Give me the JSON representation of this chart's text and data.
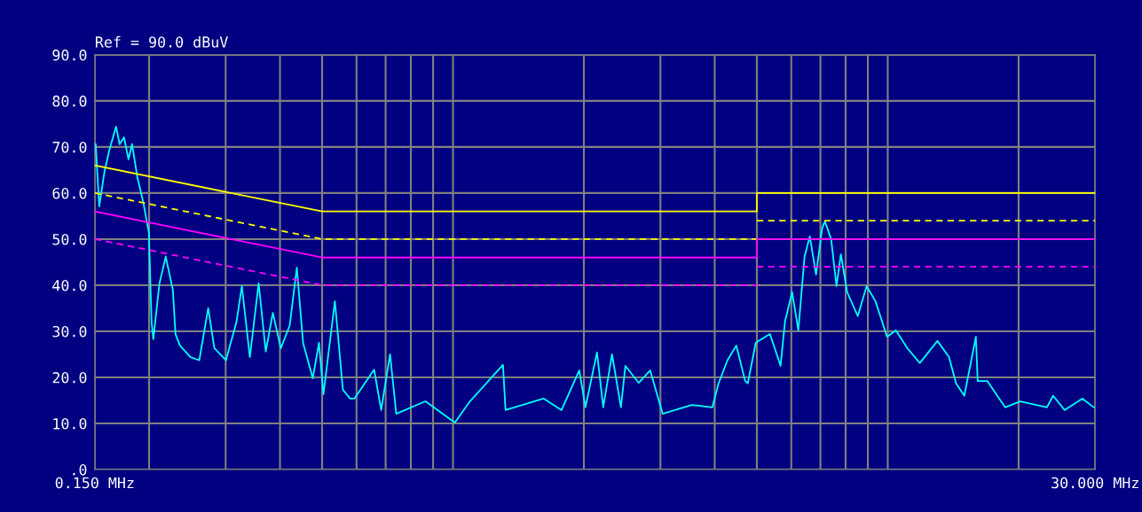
{
  "chart_data": {
    "type": "line",
    "title": "Ref = 90.0 dBuV",
    "log": "x",
    "grid": true,
    "xlim": [
      0.15,
      30
    ],
    "ylim": [
      0,
      90
    ],
    "xticks": [
      {
        "value": 0.15,
        "label": "0.150 MHz"
      },
      {
        "value": 0.2,
        "label": null
      },
      {
        "value": 0.3,
        "label": null
      },
      {
        "value": 0.4,
        "label": null
      },
      {
        "value": 0.5,
        "label": null
      },
      {
        "value": 0.6,
        "label": null
      },
      {
        "value": 0.7,
        "label": null
      },
      {
        "value": 0.8,
        "label": null
      },
      {
        "value": 0.9,
        "label": null
      },
      {
        "value": 1,
        "label": null
      },
      {
        "value": 2,
        "label": null
      },
      {
        "value": 3,
        "label": null
      },
      {
        "value": 4,
        "label": null
      },
      {
        "value": 5,
        "label": null
      },
      {
        "value": 6,
        "label": null
      },
      {
        "value": 7,
        "label": null
      },
      {
        "value": 8,
        "label": null
      },
      {
        "value": 9,
        "label": null
      },
      {
        "value": 10,
        "label": null
      },
      {
        "value": 20,
        "label": null
      },
      {
        "value": 30,
        "label": "30.000 MHz"
      }
    ],
    "yticks": [
      {
        "value": 0,
        "label": ".0"
      },
      {
        "value": 10,
        "label": "10.0"
      },
      {
        "value": 20,
        "label": "20.0"
      },
      {
        "value": 30,
        "label": "30.0"
      },
      {
        "value": 40,
        "label": "40.0"
      },
      {
        "value": 50,
        "label": "50.0"
      },
      {
        "value": 60,
        "label": "60.0"
      },
      {
        "value": 70,
        "label": "70.0"
      },
      {
        "value": 80,
        "label": "80.0"
      },
      {
        "value": 90,
        "label": "90.0"
      }
    ],
    "series": [
      {
        "color": "#ffff00",
        "line_style": "solid",
        "x": [
          0.15,
          0.5,
          5,
          5,
          30
        ],
        "values": [
          66,
          56,
          56,
          60,
          60
        ]
      },
      {
        "color": "#ffff00",
        "line_style": "dashed",
        "x": [
          0.15,
          0.5,
          5
        ],
        "values": [
          60,
          50,
          50
        ]
      },
      {
        "color": "#ffff00",
        "line_style": "dashed",
        "x": [
          5,
          30
        ],
        "values": [
          54,
          54
        ]
      },
      {
        "color": "#ff00ff",
        "line_style": "solid",
        "x": [
          0.15,
          0.5,
          5,
          5,
          30
        ],
        "values": [
          56,
          46,
          46,
          50,
          50
        ]
      },
      {
        "color": "#ff00ff",
        "line_style": "dashed",
        "x": [
          0.15,
          0.5,
          5
        ],
        "values": [
          50,
          40,
          40
        ]
      },
      {
        "color": "#ff00ff",
        "line_style": "dashed",
        "x": [
          5,
          30
        ],
        "values": [
          44,
          44
        ]
      },
      {
        "color": "#00ffff",
        "line_style": "solid",
        "x": [
          0.1507,
          0.1536,
          0.158,
          0.1619,
          0.1679,
          0.1711,
          0.1751,
          0.1793,
          0.1827,
          0.1879,
          0.1942,
          0.1998,
          0.2026,
          0.2045,
          0.2113,
          0.2184,
          0.2268,
          0.23,
          0.2355,
          0.249,
          0.2609,
          0.2735,
          0.2826,
          0.3005,
          0.3178,
          0.3269,
          0.341,
          0.3573,
          0.371,
          0.3852,
          0.4019,
          0.4212,
          0.4374,
          0.452,
          0.4759,
          0.4918,
          0.5035,
          0.535,
          0.5582,
          0.5796,
          0.5934,
          0.6584,
          0.6837,
          0.7166,
          0.7405,
          0.8643,
          1.01,
          1.094,
          1.303,
          1.321,
          1.617,
          1.777,
          1.952,
          2.017,
          2.144,
          2.216,
          2.322,
          2.434,
          2.492,
          2.674,
          2.842,
          3.035,
          3.544,
          3.95,
          4.082,
          4.278,
          4.483,
          4.699,
          4.765,
          4.971,
          5.358,
          5.669,
          5.803,
          6.026,
          6.228,
          6.436,
          6.62,
          6.841,
          7.07,
          7.17,
          7.41,
          7.623,
          7.804,
          8.065,
          8.533,
          8.943,
          9.373,
          9.962,
          10.44,
          11.1,
          11.85,
          13.01,
          13.83,
          14.36,
          15.0,
          15.95,
          16.1,
          16.95,
          18.62,
          20.17,
          23.24,
          24.01,
          25.51,
          28.03,
          29.79
        ],
        "values": [
          70.6,
          57.1,
          64.8,
          69.2,
          74.4,
          70.6,
          72.1,
          67.3,
          70.6,
          63.5,
          57.7,
          51.3,
          32.1,
          28.3,
          40.4,
          46.2,
          39.0,
          29.4,
          26.9,
          24.4,
          23.7,
          35.0,
          26.3,
          23.7,
          32.1,
          39.8,
          24.4,
          40.4,
          25.6,
          34.0,
          26.3,
          31.3,
          43.8,
          27.5,
          19.8,
          27.5,
          16.3,
          36.5,
          17.3,
          15.4,
          15.4,
          21.7,
          12.9,
          25.0,
          12.1,
          14.8,
          10.2,
          14.8,
          22.7,
          12.9,
          15.4,
          12.9,
          21.5,
          13.5,
          25.4,
          13.5,
          25.0,
          13.5,
          22.5,
          18.8,
          21.5,
          12.1,
          14.0,
          13.5,
          18.7,
          23.7,
          26.9,
          19.2,
          18.7,
          27.5,
          29.4,
          22.5,
          32.1,
          38.5,
          30.2,
          46.2,
          50.6,
          42.3,
          52.5,
          53.8,
          50.0,
          39.8,
          46.7,
          38.5,
          33.3,
          39.8,
          36.5,
          28.8,
          30.2,
          26.3,
          23.1,
          27.9,
          24.4,
          18.7,
          16.0,
          28.8,
          19.2,
          19.2,
          13.5,
          14.8,
          13.5,
          16.0,
          12.9,
          15.4,
          13.5
        ]
      }
    ]
  }
}
